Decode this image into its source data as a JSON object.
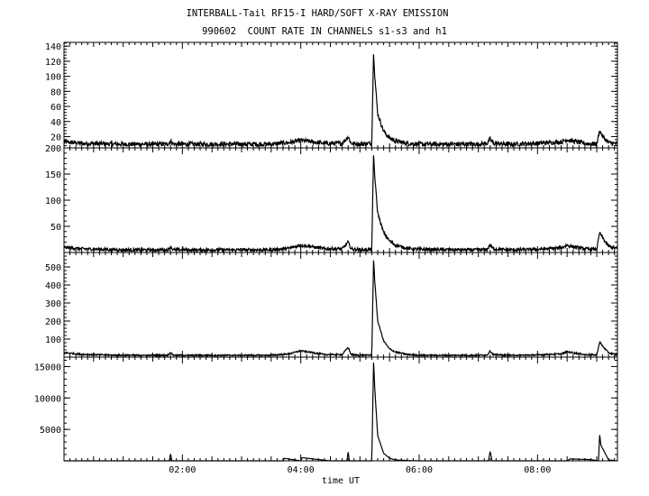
{
  "chart_data": {
    "type": "line",
    "title": "INTERBALL-Tail RF15-I HARD/SOFT X-RAY EMISSION",
    "subtitle": "990602  COUNT RATE IN CHANNELS s1-s3 and h1",
    "xlabel": "time UT",
    "x_units": "hours UT",
    "xlim": [
      0.0,
      9.35
    ],
    "x_ticks": [
      2,
      4,
      6,
      8
    ],
    "x_tick_labels": [
      "02:00",
      "04:00",
      "06:00",
      "08:00"
    ],
    "grid": false,
    "panels": [
      {
        "ylim": [
          5,
          145
        ],
        "y_ticks": [
          20,
          40,
          60,
          80,
          100,
          120,
          140
        ],
        "y_tick_labels": [
          "20",
          "40",
          "60",
          "80",
          "100",
          "120",
          "140"
        ],
        "baseline": 10,
        "noise": 3,
        "series": [
          {
            "x": [
              0.0,
              0.3,
              1.0,
              1.75,
              1.8,
              1.85,
              2.5,
              3.5,
              3.8,
              4.0,
              4.2,
              4.4,
              4.7,
              4.8,
              4.85,
              5.0,
              5.2,
              5.23,
              5.25,
              5.3,
              5.4,
              5.5,
              5.6,
              5.8,
              6.0,
              7.0,
              7.15,
              7.2,
              7.25,
              7.5,
              8.0,
              8.4,
              8.5,
              8.6,
              8.8,
              9.0,
              9.05,
              9.1,
              9.2,
              9.35
            ],
            "y": [
              13,
              11,
              10,
              10,
              14,
              10,
              10,
              10,
              12,
              15,
              13,
              11,
              11,
              20,
              11,
              10,
              11,
              135,
              100,
              50,
              27,
              18,
              14,
              11,
              10,
              10,
              11,
              17,
              11,
              10,
              11,
              13,
              16,
              14,
              11,
              10,
              28,
              20,
              12,
              10
            ]
          }
        ]
      },
      {
        "ylim": [
          0,
          200
        ],
        "y_ticks": [
          50,
          100,
          150,
          200
        ],
        "y_tick_labels": [
          "50",
          "100",
          "150",
          "200"
        ],
        "baseline": 5,
        "noise": 3,
        "series": [
          {
            "x": [
              0.0,
              0.3,
              1.0,
              1.75,
              1.8,
              1.85,
              2.5,
              3.5,
              3.8,
              4.0,
              4.2,
              4.4,
              4.7,
              4.8,
              4.85,
              5.0,
              5.2,
              5.23,
              5.25,
              5.3,
              5.4,
              5.5,
              5.6,
              5.8,
              6.0,
              7.0,
              7.15,
              7.2,
              7.25,
              7.5,
              8.0,
              8.4,
              8.5,
              8.6,
              8.8,
              9.0,
              9.05,
              9.1,
              9.2,
              9.35
            ],
            "y": [
              10,
              7,
              5,
              5,
              11,
              5,
              5,
              5,
              8,
              14,
              11,
              7,
              7,
              20,
              7,
              5,
              6,
              190,
              145,
              75,
              38,
              22,
              14,
              8,
              6,
              5,
              6,
              15,
              7,
              5,
              6,
              9,
              14,
              11,
              7,
              6,
              38,
              28,
              12,
              7
            ]
          }
        ]
      },
      {
        "ylim": [
          0,
          580
        ],
        "y_ticks": [
          100,
          200,
          300,
          400,
          500
        ],
        "y_tick_labels": [
          "100",
          "200",
          "300",
          "400",
          "500"
        ],
        "baseline": 10,
        "noise": 4,
        "series": [
          {
            "x": [
              0.0,
              0.3,
              1.0,
              1.75,
              1.8,
              1.85,
              2.5,
              3.5,
              3.8,
              4.0,
              4.2,
              4.4,
              4.7,
              4.8,
              4.85,
              5.0,
              5.2,
              5.23,
              5.25,
              5.3,
              5.4,
              5.5,
              5.6,
              5.8,
              6.0,
              7.0,
              7.15,
              7.2,
              7.25,
              7.5,
              8.0,
              8.4,
              8.5,
              8.6,
              8.8,
              9.0,
              9.05,
              9.1,
              9.2,
              9.35
            ],
            "y": [
              25,
              15,
              10,
              10,
              25,
              10,
              10,
              10,
              18,
              35,
              25,
              14,
              14,
              55,
              14,
              10,
              12,
              550,
              420,
              200,
              90,
              45,
              28,
              15,
              10,
              10,
              12,
              35,
              14,
              10,
              12,
              18,
              30,
              24,
              14,
              12,
              85,
              60,
              24,
              12
            ]
          }
        ]
      },
      {
        "ylim": [
          0,
          16500
        ],
        "y_ticks": [
          5000,
          10000,
          15000
        ],
        "y_tick_labels": [
          "5000",
          "10000",
          "15000"
        ],
        "baseline": 0,
        "noise": 0,
        "series": [
          {
            "x": [
              0.0,
              1.0,
              1.78,
              1.8,
              1.82,
              2.5,
              3.0,
              3.7,
              3.72,
              4.0,
              4.02,
              4.5,
              4.78,
              4.8,
              4.82,
              5.0,
              5.2,
              5.23,
              5.25,
              5.3,
              5.4,
              5.5,
              5.6,
              5.8,
              6.0,
              7.0,
              7.17,
              7.2,
              7.23,
              7.5,
              8.0,
              8.5,
              8.55,
              8.9,
              9.03,
              9.05,
              9.07,
              9.2,
              9.35
            ],
            "y": [
              0,
              0,
              0,
              1200,
              0,
              0,
              0,
              0,
              400,
              0,
              500,
              0,
              0,
              1500,
              0,
              0,
              0,
              16000,
              11500,
              4000,
              1200,
              400,
              150,
              50,
              0,
              0,
              0,
              1500,
              0,
              0,
              0,
              0,
              300,
              200,
              0,
              4200,
              2500,
              150,
              0
            ]
          }
        ]
      }
    ]
  }
}
